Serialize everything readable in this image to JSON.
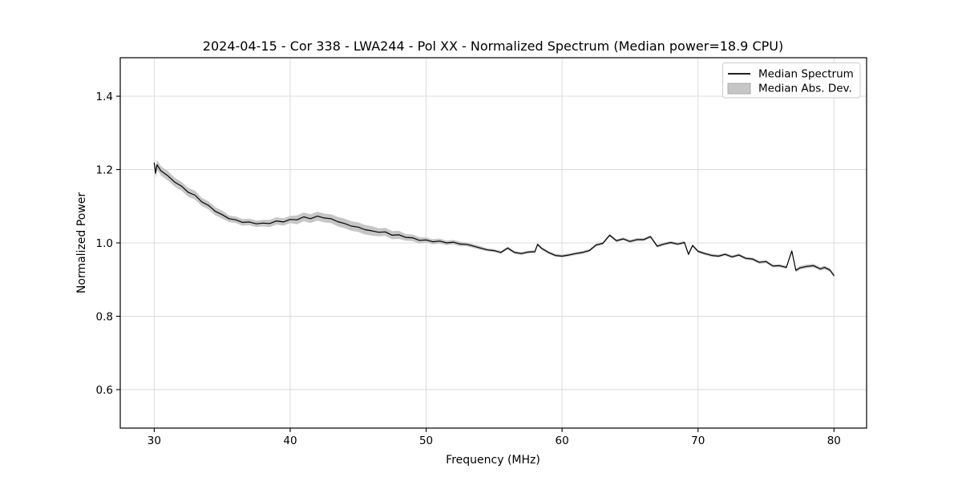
{
  "chart_data": {
    "type": "line",
    "title": "2024-04-15 - Cor 338 - LWA244 - Pol XX - Normalized Spectrum (Median power=18.9 CPU)",
    "xlabel": "Frequency (MHz)",
    "ylabel": "Normalized Power",
    "xlim": [
      27.5,
      82.4
    ],
    "ylim": [
      0.495,
      1.505
    ],
    "xticks": [
      30,
      40,
      50,
      60,
      70,
      80
    ],
    "yticks": [
      0.6,
      0.8,
      1.0,
      1.2,
      1.4
    ],
    "grid": true,
    "background_color": "#ffffff",
    "line_color": "#000000",
    "band_color": "#c6c6c6",
    "legend": {
      "position": "upper right",
      "entries": [
        {
          "label": "Median Spectrum",
          "type": "line",
          "color": "#000000"
        },
        {
          "label": "Median Abs. Dev.",
          "type": "patch",
          "color": "#c6c6c6"
        }
      ]
    },
    "x": [
      30.0,
      30.1,
      30.2,
      30.5,
      31.0,
      31.5,
      32.0,
      32.5,
      33.0,
      33.5,
      34.0,
      34.5,
      35.0,
      35.5,
      36.0,
      36.5,
      37.0,
      37.5,
      38.0,
      38.5,
      39.0,
      39.5,
      40.0,
      40.5,
      41.0,
      41.5,
      42.0,
      42.5,
      43.0,
      43.5,
      44.0,
      44.5,
      45.0,
      45.5,
      46.0,
      46.5,
      47.0,
      47.5,
      48.0,
      48.5,
      49.0,
      49.5,
      50.0,
      50.5,
      51.0,
      51.5,
      52.0,
      52.5,
      53.0,
      53.5,
      54.0,
      54.5,
      55.0,
      55.5,
      56.0,
      56.5,
      57.0,
      57.5,
      58.0,
      58.2,
      58.5,
      59.0,
      59.5,
      60.0,
      60.5,
      61.0,
      61.5,
      62.0,
      62.5,
      63.0,
      63.5,
      64.0,
      64.5,
      65.0,
      65.5,
      66.0,
      66.5,
      67.0,
      67.5,
      68.0,
      68.5,
      69.0,
      69.3,
      69.6,
      70.0,
      70.5,
      71.0,
      71.5,
      72.0,
      72.5,
      73.0,
      73.5,
      74.0,
      74.5,
      75.0,
      75.5,
      76.0,
      76.5,
      76.9,
      77.2,
      77.5,
      78.0,
      78.5,
      79.0,
      79.3,
      79.7,
      80.0
    ],
    "median": [
      1.218,
      1.19,
      1.213,
      1.196,
      1.183,
      1.166,
      1.155,
      1.138,
      1.13,
      1.112,
      1.102,
      1.086,
      1.077,
      1.066,
      1.063,
      1.056,
      1.057,
      1.052,
      1.054,
      1.053,
      1.06,
      1.057,
      1.064,
      1.063,
      1.071,
      1.066,
      1.073,
      1.068,
      1.066,
      1.058,
      1.053,
      1.046,
      1.043,
      1.036,
      1.033,
      1.029,
      1.03,
      1.021,
      1.022,
      1.015,
      1.014,
      1.007,
      1.008,
      1.003,
      1.005,
      1.0,
      1.002,
      0.997,
      0.996,
      0.991,
      0.986,
      0.981,
      0.979,
      0.974,
      0.986,
      0.974,
      0.971,
      0.975,
      0.976,
      0.996,
      0.985,
      0.974,
      0.966,
      0.964,
      0.967,
      0.971,
      0.974,
      0.979,
      0.994,
      0.999,
      1.021,
      1.006,
      1.011,
      1.004,
      1.009,
      1.009,
      1.017,
      0.991,
      0.997,
      1.001,
      0.997,
      1.001,
      0.969,
      0.993,
      0.977,
      0.971,
      0.966,
      0.964,
      0.969,
      0.962,
      0.967,
      0.958,
      0.956,
      0.947,
      0.949,
      0.937,
      0.938,
      0.933,
      0.978,
      0.925,
      0.932,
      0.936,
      0.938,
      0.929,
      0.933,
      0.926,
      0.911
    ],
    "mad": [
      0.013,
      0.013,
      0.013,
      0.013,
      0.013,
      0.012,
      0.012,
      0.012,
      0.012,
      0.011,
      0.011,
      0.011,
      0.011,
      0.009,
      0.009,
      0.009,
      0.009,
      0.009,
      0.009,
      0.01,
      0.01,
      0.01,
      0.01,
      0.012,
      0.012,
      0.012,
      0.012,
      0.012,
      0.012,
      0.013,
      0.013,
      0.013,
      0.013,
      0.013,
      0.013,
      0.011,
      0.011,
      0.011,
      0.011,
      0.009,
      0.009,
      0.009,
      0.007,
      0.007,
      0.007,
      0.006,
      0.006,
      0.006,
      0.005,
      0.005,
      0.005,
      0.004,
      0.004,
      0.004,
      0.004,
      0.004,
      0.004,
      0.004,
      0.004,
      0.004,
      0.004,
      0.004,
      0.004,
      0.004,
      0.004,
      0.004,
      0.004,
      0.004,
      0.004,
      0.004,
      0.004,
      0.004,
      0.004,
      0.004,
      0.004,
      0.004,
      0.004,
      0.004,
      0.004,
      0.004,
      0.004,
      0.004,
      0.004,
      0.004,
      0.004,
      0.004,
      0.004,
      0.004,
      0.004,
      0.004,
      0.004,
      0.004,
      0.004,
      0.004,
      0.004,
      0.004,
      0.004,
      0.004,
      0.005,
      0.005,
      0.005,
      0.005,
      0.005,
      0.005,
      0.005,
      0.005,
      0.005
    ]
  }
}
